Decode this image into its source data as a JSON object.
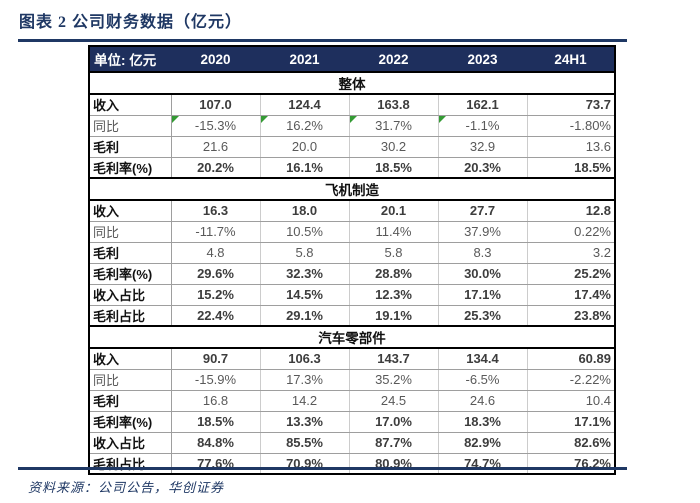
{
  "header": {
    "title": "图表 2  公司财务数据（亿元）"
  },
  "footer": {
    "source": "资料来源：公司公告，华创证券"
  },
  "colors": {
    "navy_accent": "#1F3864",
    "header_bg": "#1E2F5D",
    "flag_green": "#349B34",
    "bold_text": "#3D3D3D",
    "regular_text": "#595959"
  },
  "table": {
    "unit_label": "单位: 亿元",
    "year_headers": [
      "2020",
      "2021",
      "2022",
      "2023",
      "24H1"
    ],
    "sections": [
      {
        "title": "整体",
        "rows": [
          {
            "label": "收入",
            "label_bold": true,
            "values_bold": true,
            "values": [
              "107.0",
              "124.4",
              "163.8",
              "162.1",
              "73.7"
            ]
          },
          {
            "label": "同比",
            "label_bold": false,
            "values_bold": false,
            "values": [
              "-15.3%",
              "16.2%",
              "31.7%",
              "-1.1%",
              "-1.80%"
            ],
            "flags": [
              1,
              1,
              1,
              1,
              0
            ]
          },
          {
            "label": "毛利",
            "label_bold": true,
            "values_bold": false,
            "values": [
              "21.6",
              "20.0",
              "30.2",
              "32.9",
              "13.6"
            ]
          },
          {
            "label": "毛利率(%)",
            "label_bold": true,
            "values_bold": true,
            "values": [
              "20.2%",
              "16.1%",
              "18.5%",
              "20.3%",
              "18.5%"
            ]
          }
        ]
      },
      {
        "title": "飞机制造",
        "rows": [
          {
            "label": "收入",
            "label_bold": true,
            "values_bold": true,
            "values": [
              "16.3",
              "18.0",
              "20.1",
              "27.7",
              "12.8"
            ]
          },
          {
            "label": "同比",
            "label_bold": false,
            "values_bold": false,
            "values": [
              "-11.7%",
              "10.5%",
              "11.4%",
              "37.9%",
              "0.22%"
            ]
          },
          {
            "label": "毛利",
            "label_bold": true,
            "values_bold": false,
            "values": [
              "4.8",
              "5.8",
              "5.8",
              "8.3",
              "3.2"
            ]
          },
          {
            "label": "毛利率(%)",
            "label_bold": true,
            "values_bold": true,
            "values": [
              "29.6%",
              "32.3%",
              "28.8%",
              "30.0%",
              "25.2%"
            ]
          },
          {
            "label": "收入占比",
            "label_bold": true,
            "values_bold": true,
            "values": [
              "15.2%",
              "14.5%",
              "12.3%",
              "17.1%",
              "17.4%"
            ]
          },
          {
            "label": "毛利占比",
            "label_bold": true,
            "values_bold": true,
            "values": [
              "22.4%",
              "29.1%",
              "19.1%",
              "25.3%",
              "23.8%"
            ]
          }
        ]
      },
      {
        "title": "汽车零部件",
        "rows": [
          {
            "label": "收入",
            "label_bold": true,
            "values_bold": true,
            "values": [
              "90.7",
              "106.3",
              "143.7",
              "134.4",
              "60.89"
            ]
          },
          {
            "label": "同比",
            "label_bold": false,
            "values_bold": false,
            "values": [
              "-15.9%",
              "17.3%",
              "35.2%",
              "-6.5%",
              "-2.22%"
            ]
          },
          {
            "label": "毛利",
            "label_bold": true,
            "values_bold": false,
            "values": [
              "16.8",
              "14.2",
              "24.5",
              "24.6",
              "10.4"
            ]
          },
          {
            "label": "毛利率(%)",
            "label_bold": true,
            "values_bold": true,
            "values": [
              "18.5%",
              "13.3%",
              "17.0%",
              "18.3%",
              "17.1%"
            ]
          },
          {
            "label": "收入占比",
            "label_bold": true,
            "values_bold": true,
            "values": [
              "84.8%",
              "85.5%",
              "87.7%",
              "82.9%",
              "82.6%"
            ]
          },
          {
            "label": "毛利占比",
            "label_bold": true,
            "values_bold": true,
            "values": [
              "77.6%",
              "70.9%",
              "80.9%",
              "74.7%",
              "76.2%"
            ]
          }
        ]
      }
    ]
  }
}
